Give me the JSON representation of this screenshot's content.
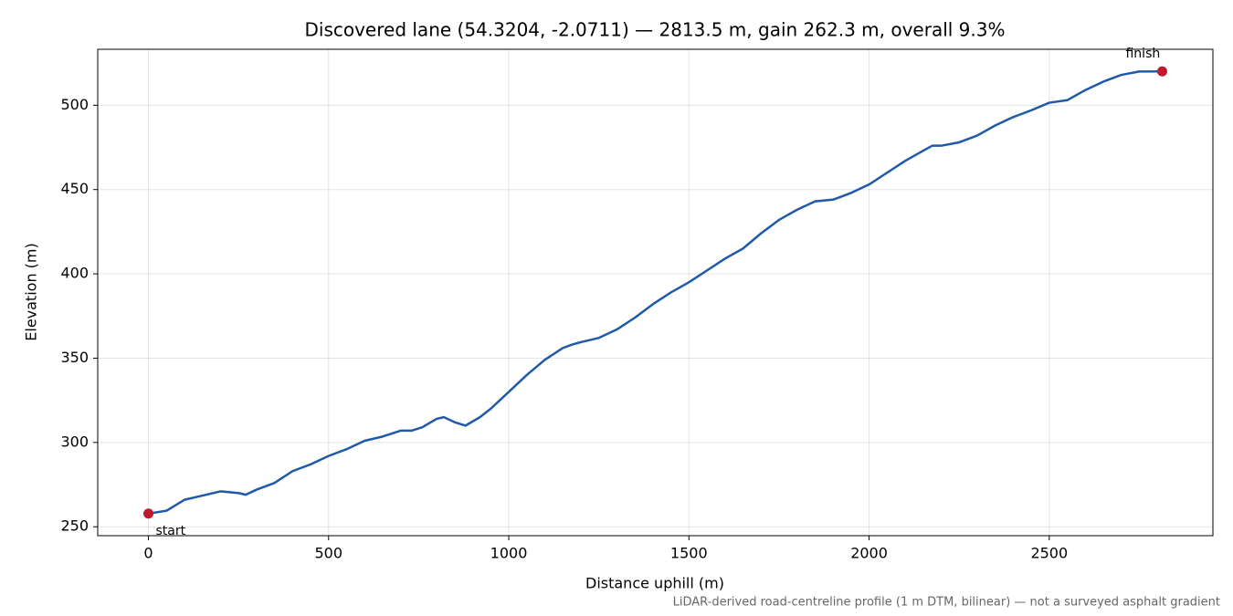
{
  "chart_data": {
    "type": "line",
    "title": "Discovered lane (54.3204, -2.0711) — 2813.5 m, gain 262.3 m, overall 9.3%",
    "x_label": "Distance uphill (m)",
    "y_label": "Elevation (m)",
    "footnote": "LiDAR-derived road-centreline profile (1 m DTM, bilinear) — not a surveyed asphalt gradient",
    "x": [
      0,
      50,
      100,
      150,
      200,
      250,
      270,
      300,
      350,
      400,
      450,
      500,
      550,
      600,
      650,
      700,
      730,
      760,
      800,
      820,
      850,
      880,
      920,
      950,
      1000,
      1050,
      1100,
      1150,
      1175,
      1200,
      1250,
      1300,
      1350,
      1400,
      1450,
      1500,
      1550,
      1600,
      1650,
      1700,
      1750,
      1800,
      1850,
      1900,
      1950,
      2000,
      2050,
      2100,
      2150,
      2175,
      2200,
      2250,
      2300,
      2350,
      2400,
      2450,
      2500,
      2550,
      2600,
      2650,
      2700,
      2750,
      2813.5
    ],
    "series": [
      {
        "name": "Elevation",
        "color": "#1f5aa8",
        "values": [
          257.8,
          259.5,
          266,
          268.5,
          271,
          270,
          269,
          272,
          276,
          283,
          287,
          292,
          296,
          301,
          303.5,
          307,
          307,
          309,
          314,
          315,
          312,
          310,
          315,
          320,
          330,
          340,
          349,
          356,
          358,
          359.5,
          362,
          367,
          374,
          382,
          389,
          395,
          402,
          409,
          415,
          424,
          432,
          438,
          443,
          444,
          448,
          453,
          460,
          467,
          473,
          476,
          476,
          478,
          482,
          488,
          493,
          497,
          501.5,
          503,
          509,
          514,
          518,
          520,
          520.1
        ]
      }
    ],
    "annotations": [
      {
        "text": "start",
        "x": 0,
        "y": 257.8,
        "color": "#c0192b"
      },
      {
        "text": "finish",
        "x": 2813.5,
        "y": 520.1,
        "color": "#c0192b"
      }
    ],
    "xlim": [
      -140.7,
      2954.2
    ],
    "ylim": [
      244.7,
      533.2
    ],
    "xticks": [
      0,
      500,
      1000,
      1500,
      2000,
      2500
    ],
    "yticks": [
      250,
      300,
      350,
      400,
      450,
      500
    ],
    "grid": true
  }
}
